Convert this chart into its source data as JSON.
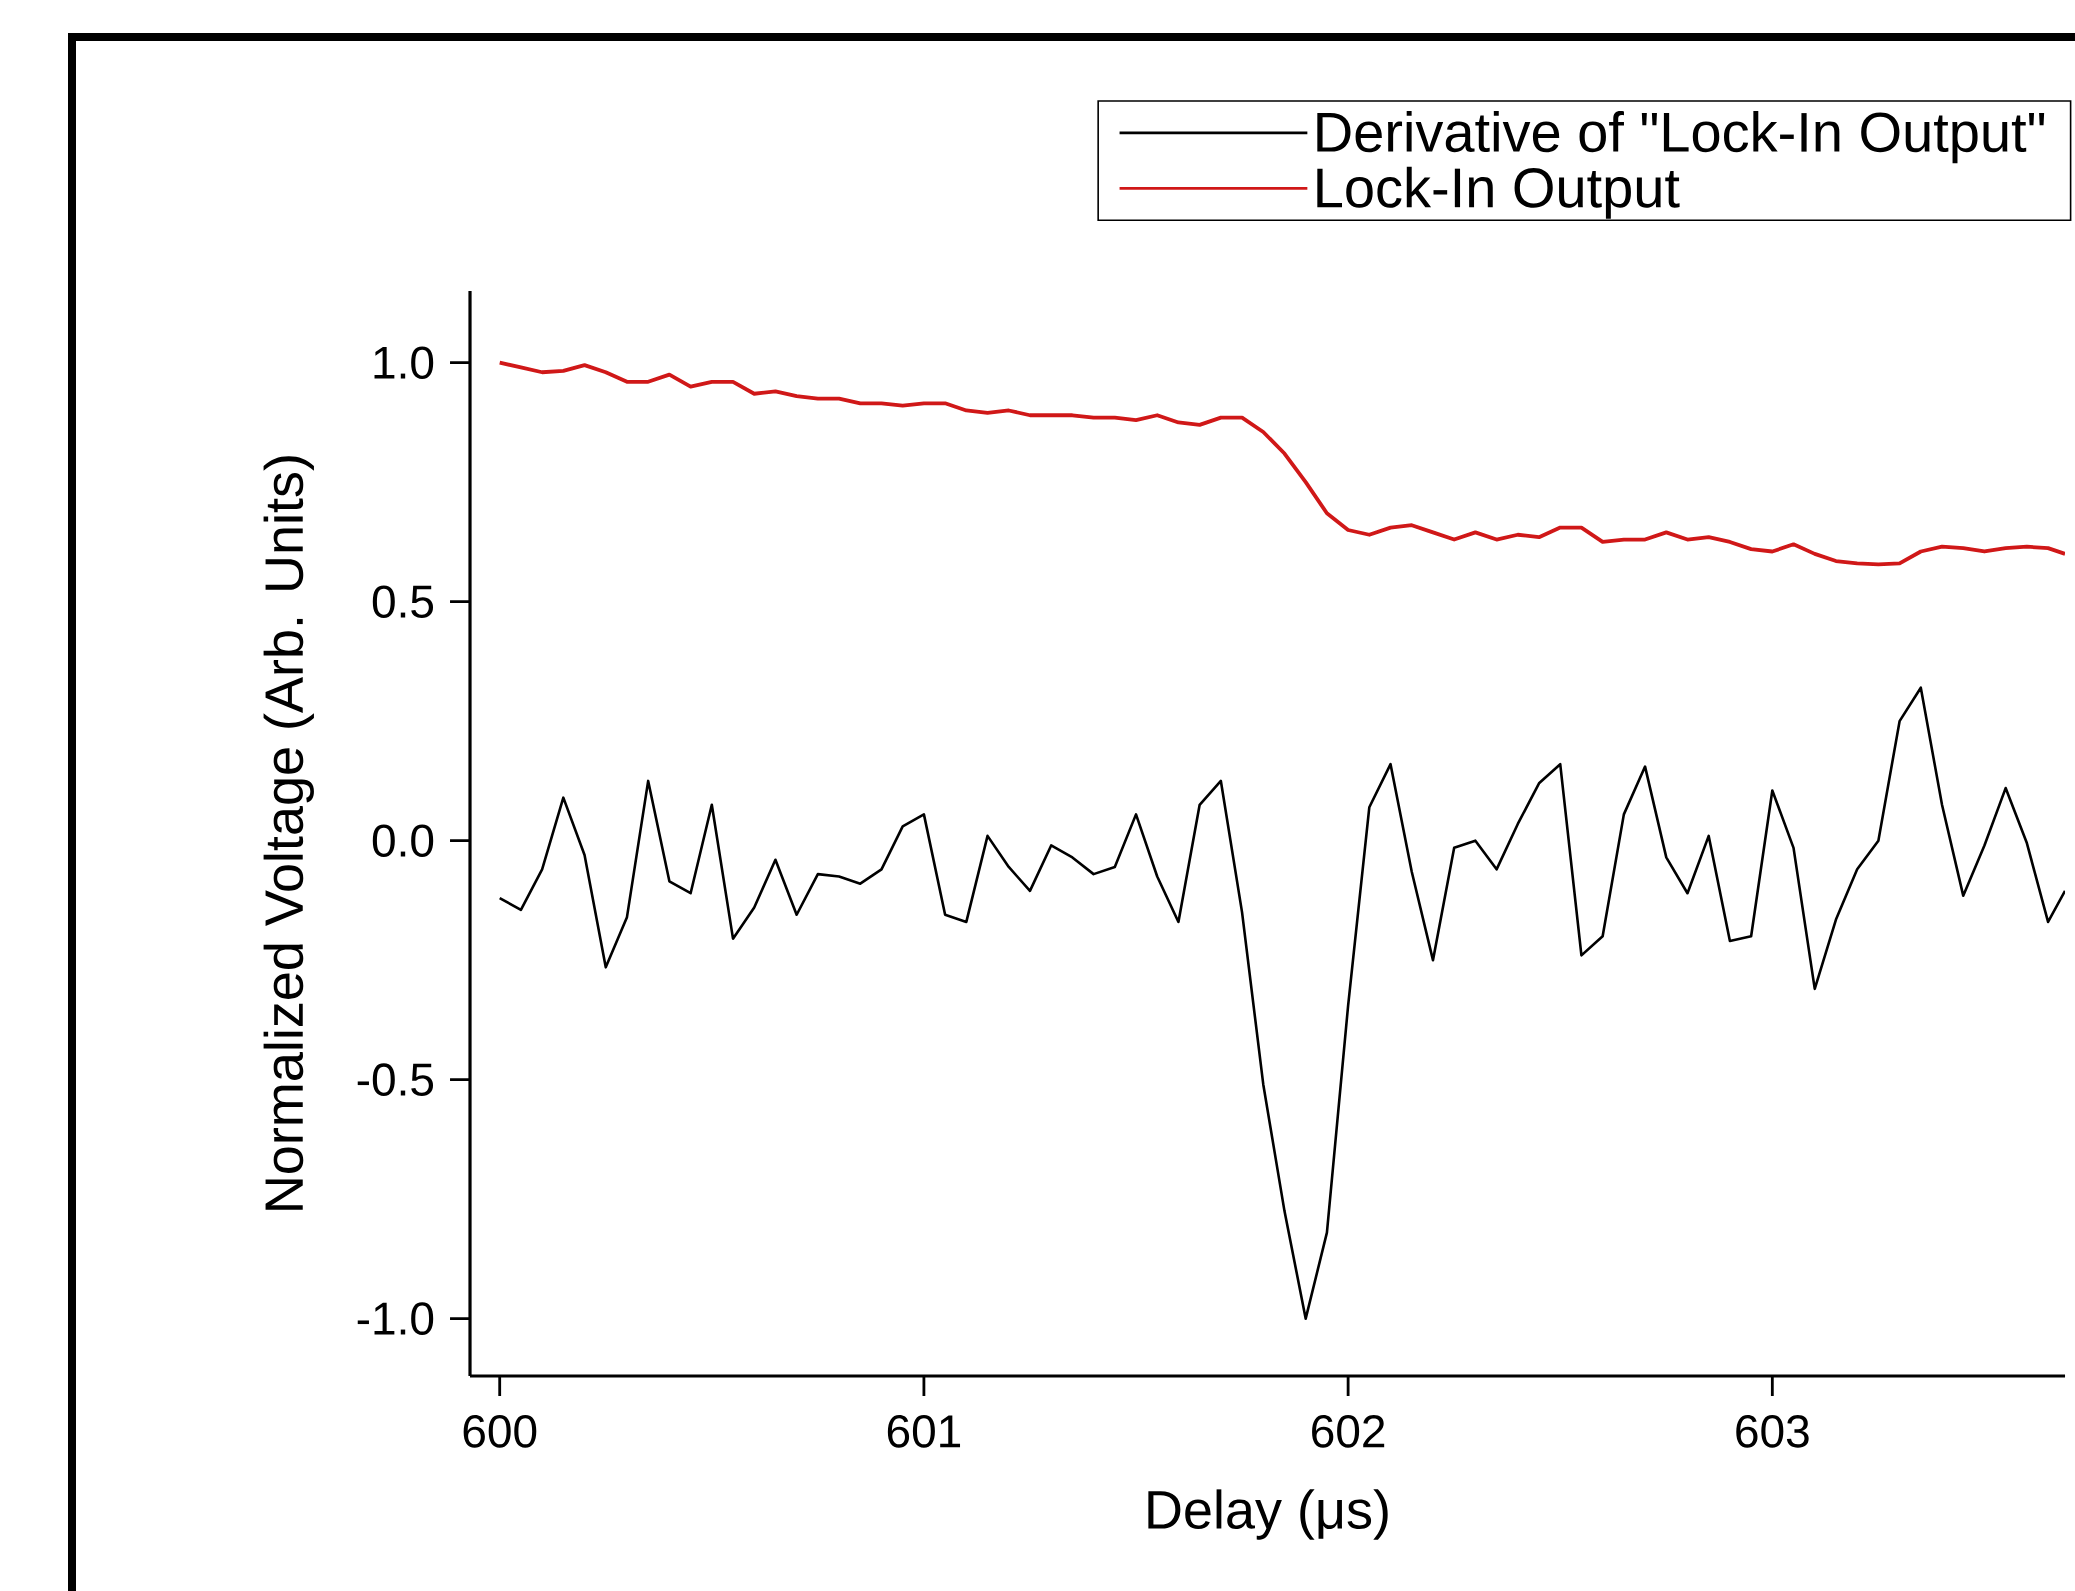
{
  "chart_data": {
    "type": "line",
    "xlabel": "Delay (μs)",
    "ylabel": "Normalized Voltage (Arb. Units)",
    "xlim": [
      599.93,
      603.69
    ],
    "ylim": [
      -1.12,
      1.15
    ],
    "xticks": [
      600,
      601,
      602,
      603
    ],
    "yticks": [
      {
        "value": -1,
        "label": "-1.0"
      },
      {
        "value": -0.5,
        "label": "-0.5"
      },
      {
        "value": 0,
        "label": "0.0"
      },
      {
        "value": 0.5,
        "label": "0.5"
      },
      {
        "value": 1,
        "label": "1.0"
      }
    ],
    "x": [
      600.0,
      600.05,
      600.1,
      600.15,
      600.2,
      600.25,
      600.3,
      600.35,
      600.4,
      600.45,
      600.5,
      600.55,
      600.6,
      600.65,
      600.7,
      600.75,
      600.8,
      600.85,
      600.9,
      600.95,
      601.0,
      601.05,
      601.1,
      601.15,
      601.2,
      601.25,
      601.3,
      601.35,
      601.4,
      601.45,
      601.5,
      601.55,
      601.6,
      601.65,
      601.7,
      601.75,
      601.8,
      601.85,
      601.9,
      601.95,
      602.0,
      602.05,
      602.1,
      602.15,
      602.2,
      602.25,
      602.3,
      602.35,
      602.4,
      602.45,
      602.5,
      602.55,
      602.6,
      602.65,
      602.7,
      602.75,
      602.8,
      602.85,
      602.9,
      602.95,
      603.0,
      603.05,
      603.1,
      603.15,
      603.2,
      603.25,
      603.3,
      603.35,
      603.4,
      603.45,
      603.5,
      603.55,
      603.6,
      603.65,
      603.69
    ],
    "series": [
      {
        "name": "Derivative of \"Lock-In Output\"",
        "color": "#000000",
        "values": [
          -0.12,
          -0.145,
          -0.06,
          0.09,
          -0.03,
          -0.265,
          -0.16,
          0.125,
          -0.085,
          -0.11,
          0.075,
          -0.205,
          -0.14,
          -0.04,
          -0.155,
          -0.07,
          -0.075,
          -0.09,
          -0.06,
          0.03,
          0.055,
          -0.155,
          -0.17,
          0.01,
          -0.055,
          -0.105,
          -0.01,
          -0.035,
          -0.07,
          -0.055,
          0.055,
          -0.075,
          -0.17,
          0.075,
          0.125,
          -0.15,
          -0.51,
          -0.775,
          -1.0,
          -0.82,
          -0.345,
          0.07,
          0.16,
          -0.065,
          -0.25,
          -0.015,
          0.0,
          -0.06,
          0.035,
          0.12,
          0.16,
          -0.24,
          -0.2,
          0.055,
          0.155,
          -0.035,
          -0.11,
          0.01,
          -0.21,
          -0.2,
          0.105,
          -0.015,
          -0.31,
          -0.165,
          -0.06,
          0.0,
          0.25,
          0.32,
          0.075,
          -0.115,
          -0.01,
          0.11,
          -0.005,
          -0.17,
          -0.105
        ]
      },
      {
        "name": "Lock-In Output",
        "color": "#d01818",
        "values": [
          1.0,
          0.99,
          0.98,
          0.983,
          0.995,
          0.98,
          0.96,
          0.96,
          0.975,
          0.95,
          0.96,
          0.96,
          0.935,
          0.94,
          0.93,
          0.925,
          0.925,
          0.915,
          0.915,
          0.91,
          0.915,
          0.915,
          0.9,
          0.895,
          0.9,
          0.89,
          0.89,
          0.89,
          0.885,
          0.885,
          0.88,
          0.89,
          0.875,
          0.87,
          0.885,
          0.885,
          0.855,
          0.81,
          0.75,
          0.685,
          0.65,
          0.64,
          0.655,
          0.66,
          0.645,
          0.63,
          0.645,
          0.63,
          0.64,
          0.635,
          0.655,
          0.655,
          0.625,
          0.63,
          0.63,
          0.645,
          0.63,
          0.635,
          0.625,
          0.61,
          0.605,
          0.62,
          0.6,
          0.585,
          0.58,
          0.578,
          0.58,
          0.605,
          0.615,
          0.612,
          0.605,
          0.612,
          0.615,
          0.612,
          0.6
        ]
      }
    ],
    "legend": "top right",
    "grid": false,
    "marker": "none",
    "line_style": "solid"
  }
}
